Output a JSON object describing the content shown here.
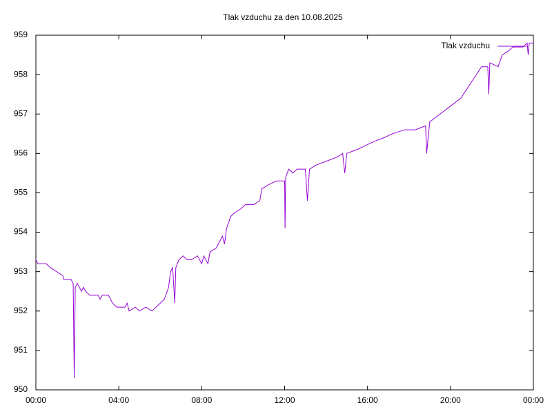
{
  "chart_data": {
    "type": "line",
    "title": "Tlak vzduchu za den 10.08.2025",
    "x": [
      0,
      0.1,
      0.5,
      0.7,
      1.0,
      1.3,
      1.35,
      1.7,
      1.8,
      1.85,
      1.9,
      2.0,
      2.2,
      2.3,
      2.4,
      2.6,
      3.0,
      3.1,
      3.2,
      3.5,
      3.6,
      3.7,
      3.9,
      4.3,
      4.4,
      4.5,
      4.8,
      5.0,
      5.3,
      5.6,
      5.8,
      6.0,
      6.2,
      6.4,
      6.5,
      6.6,
      6.7,
      6.75,
      6.9,
      7.1,
      7.3,
      7.5,
      7.8,
      8.0,
      8.1,
      8.3,
      8.4,
      8.7,
      8.9,
      9.0,
      9.1,
      9.2,
      9.4,
      9.6,
      9.9,
      10.1,
      10.5,
      10.8,
      10.9,
      11.2,
      11.6,
      12.0,
      12.02,
      12.05,
      12.2,
      12.4,
      12.6,
      13.0,
      13.1,
      13.2,
      13.5,
      14.0,
      14.5,
      14.8,
      14.9,
      15.0,
      15.5,
      15.9,
      16.3,
      16.8,
      17.2,
      17.8,
      18.3,
      18.8,
      18.85,
      19.0,
      19.5,
      20.0,
      20.5,
      21.0,
      21.5,
      21.8,
      21.85,
      21.9,
      22.3,
      22.5,
      22.8,
      23.0,
      23.5,
      23.7,
      23.75,
      23.8,
      24.0
    ],
    "series": [
      {
        "name": "Tlak vzduchu",
        "color": "#9400d3",
        "values": [
          953.3,
          953.2,
          953.2,
          953.1,
          953.0,
          952.9,
          952.8,
          952.8,
          952.7,
          950.3,
          952.6,
          952.7,
          952.5,
          952.6,
          952.5,
          952.4,
          952.4,
          952.3,
          952.4,
          952.4,
          952.3,
          952.2,
          952.1,
          952.1,
          952.2,
          952.0,
          952.1,
          952.0,
          952.1,
          952.0,
          952.1,
          952.2,
          952.3,
          952.6,
          953.0,
          953.1,
          952.2,
          953.1,
          953.3,
          953.4,
          953.3,
          953.3,
          953.4,
          953.2,
          953.4,
          953.2,
          953.5,
          953.6,
          953.8,
          953.9,
          953.7,
          954.1,
          954.4,
          954.5,
          954.6,
          954.7,
          954.7,
          954.8,
          955.1,
          955.2,
          955.3,
          955.3,
          954.1,
          955.4,
          955.6,
          955.5,
          955.6,
          955.6,
          954.8,
          955.6,
          955.7,
          955.8,
          955.9,
          956.0,
          955.5,
          956.0,
          956.1,
          956.2,
          956.3,
          956.4,
          956.5,
          956.6,
          956.6,
          956.7,
          956.0,
          956.8,
          957.0,
          957.2,
          957.4,
          957.8,
          958.2,
          958.2,
          957.5,
          958.3,
          958.2,
          958.5,
          958.6,
          958.7,
          958.7,
          958.8,
          958.5,
          958.8,
          958.8
        ]
      }
    ],
    "xlim": [
      0,
      24
    ],
    "xticks": [
      {
        "value": 0,
        "label": "00:00"
      },
      {
        "value": 4,
        "label": "04:00"
      },
      {
        "value": 8,
        "label": "08:00"
      },
      {
        "value": 12,
        "label": "12:00"
      },
      {
        "value": 16,
        "label": "16:00"
      },
      {
        "value": 20,
        "label": "20:00"
      },
      {
        "value": 24,
        "label": "00:00"
      }
    ],
    "ylim": [
      950,
      959
    ],
    "yticks": [
      950,
      951,
      952,
      953,
      954,
      955,
      956,
      957,
      958,
      959
    ],
    "grid": false,
    "legend": "top-right"
  }
}
